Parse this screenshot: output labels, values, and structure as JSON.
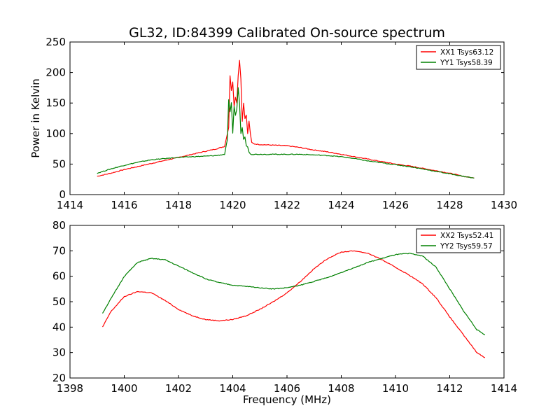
{
  "figure": {
    "title": "GL32, ID:84399 Calibrated On-source spectrum"
  },
  "chart_data": [
    {
      "type": "line",
      "title": "GL32, ID:84399 Calibrated On-source spectrum",
      "xlabel": "",
      "ylabel": "Power in Kelvin",
      "xlim": [
        1414,
        1430
      ],
      "ylim": [
        0,
        250
      ],
      "xticks": [
        1414,
        1416,
        1418,
        1420,
        1422,
        1424,
        1426,
        1428,
        1430
      ],
      "yticks": [
        0,
        50,
        100,
        150,
        200,
        250
      ],
      "grid": false,
      "legend_position": "top-right",
      "series": [
        {
          "name": "XX1 Tsys63.12",
          "color": "#ff0000",
          "x": [
            1415.0,
            1415.5,
            1416.0,
            1416.5,
            1417.0,
            1417.5,
            1418.0,
            1418.5,
            1419.0,
            1419.4,
            1419.7,
            1419.85,
            1419.9,
            1419.95,
            1420.0,
            1420.05,
            1420.1,
            1420.15,
            1420.2,
            1420.25,
            1420.3,
            1420.35,
            1420.4,
            1420.45,
            1420.5,
            1420.55,
            1420.6,
            1420.65,
            1420.7,
            1420.8,
            1421.0,
            1421.5,
            1422.0,
            1422.5,
            1423.0,
            1423.5,
            1424.0,
            1424.5,
            1425.0,
            1425.5,
            1426.0,
            1426.5,
            1427.0,
            1427.5,
            1428.0,
            1428.5,
            1428.9
          ],
          "values": [
            30,
            35,
            41,
            46,
            51,
            56,
            61,
            66,
            71,
            75,
            79,
            110,
            195,
            170,
            185,
            145,
            160,
            150,
            195,
            220,
            190,
            120,
            150,
            125,
            130,
            100,
            120,
            100,
            85,
            83,
            82,
            81,
            80,
            77,
            73,
            70,
            66,
            62,
            58,
            54,
            50,
            47,
            43,
            39,
            35,
            30,
            27
          ]
        },
        {
          "name": "YY1 Tsys58.39",
          "color": "#008000",
          "x": [
            1415.0,
            1415.5,
            1416.0,
            1416.5,
            1417.0,
            1417.5,
            1418.0,
            1418.5,
            1419.0,
            1419.4,
            1419.7,
            1419.8,
            1419.85,
            1419.9,
            1419.95,
            1420.0,
            1420.05,
            1420.1,
            1420.15,
            1420.2,
            1420.25,
            1420.3,
            1420.35,
            1420.4,
            1420.45,
            1420.5,
            1420.55,
            1420.6,
            1420.65,
            1420.7,
            1420.8,
            1421.0,
            1421.5,
            1422.0,
            1422.5,
            1423.0,
            1423.5,
            1424.0,
            1424.5,
            1425.0,
            1425.5,
            1426.0,
            1426.5,
            1427.0,
            1427.5,
            1428.0,
            1428.5,
            1428.9
          ],
          "values": [
            35,
            42,
            48,
            53,
            57,
            59,
            61,
            62,
            63,
            64,
            66,
            90,
            155,
            135,
            150,
            100,
            145,
            130,
            140,
            175,
            150,
            100,
            110,
            90,
            95,
            80,
            78,
            70,
            67,
            66,
            66,
            66,
            66,
            66,
            66,
            65,
            64,
            62,
            59,
            55,
            52,
            49,
            46,
            42,
            38,
            34,
            30,
            27
          ]
        }
      ]
    },
    {
      "type": "line",
      "title": "",
      "xlabel": "Frequency (MHz)",
      "ylabel": "",
      "xlim": [
        1398,
        1414
      ],
      "ylim": [
        20,
        80
      ],
      "xticks": [
        1398,
        1400,
        1402,
        1404,
        1406,
        1408,
        1410,
        1412,
        1414
      ],
      "yticks": [
        20,
        30,
        40,
        50,
        60,
        70,
        80
      ],
      "grid": false,
      "legend_position": "top-right",
      "series": [
        {
          "name": "XX2 Tsys52.41",
          "color": "#ff0000",
          "x": [
            1399.2,
            1399.5,
            1400.0,
            1400.5,
            1401.0,
            1401.5,
            1402.0,
            1402.5,
            1403.0,
            1403.5,
            1404.0,
            1404.5,
            1405.0,
            1405.5,
            1406.0,
            1406.5,
            1407.0,
            1407.5,
            1408.0,
            1408.5,
            1409.0,
            1409.5,
            1410.0,
            1410.5,
            1411.0,
            1411.5,
            1412.0,
            1412.5,
            1413.0,
            1413.3
          ],
          "values": [
            40,
            46,
            52,
            54,
            53.5,
            50.5,
            47,
            44.5,
            43,
            42.5,
            43,
            44.5,
            47,
            50,
            53.5,
            58,
            63,
            67,
            69.5,
            70,
            69,
            66.5,
            63.5,
            60.5,
            57,
            51.5,
            44,
            37,
            30,
            28
          ]
        },
        {
          "name": "YY2 Tsys59.57",
          "color": "#008000",
          "x": [
            1399.2,
            1399.5,
            1400.0,
            1400.5,
            1401.0,
            1401.5,
            1402.0,
            1402.5,
            1403.0,
            1403.5,
            1404.0,
            1404.5,
            1405.0,
            1405.5,
            1406.0,
            1406.5,
            1407.0,
            1407.5,
            1408.0,
            1408.5,
            1409.0,
            1409.5,
            1410.0,
            1410.5,
            1411.0,
            1411.5,
            1412.0,
            1412.5,
            1413.0,
            1413.3
          ],
          "values": [
            45.5,
            51,
            60,
            65.5,
            67,
            66.5,
            64,
            61.5,
            59,
            57.5,
            56.5,
            56,
            55.5,
            55,
            55.5,
            56.5,
            58,
            59.5,
            61.5,
            63.5,
            65.5,
            67,
            68.5,
            69,
            68,
            63.5,
            55,
            46.5,
            39,
            37
          ]
        }
      ]
    }
  ]
}
